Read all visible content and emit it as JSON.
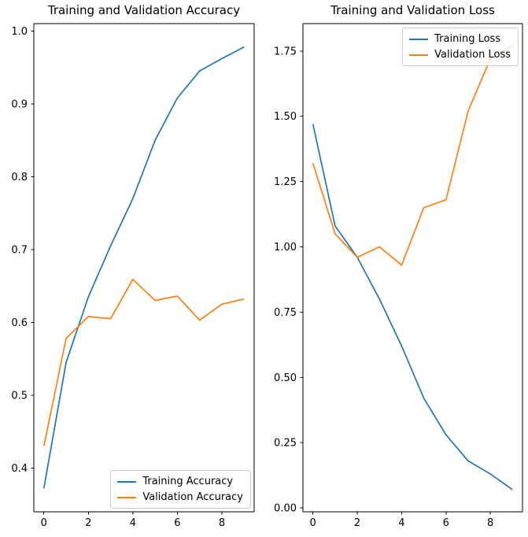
{
  "figure": {
    "background": "#ffffff",
    "axis_color": "#000000"
  },
  "chart_data": [
    {
      "type": "line",
      "title": "Training and Validation Accuracy",
      "xlabel": "",
      "ylabel": "",
      "x": [
        0,
        1,
        2,
        3,
        4,
        5,
        6,
        7,
        8,
        9
      ],
      "xlim": [
        -0.45,
        9.45
      ],
      "ylim": [
        0.34,
        1.01
      ],
      "xticks": [
        0,
        2,
        4,
        6,
        8
      ],
      "yticks": [
        0.4,
        0.5,
        0.6,
        0.7,
        0.8,
        0.9,
        1.0
      ],
      "ytick_decimals": 1,
      "grid": false,
      "legend_position": "lower right",
      "series": [
        {
          "name": "Training Accuracy",
          "color": "#1f77b4",
          "values": [
            0.372,
            0.545,
            0.635,
            0.705,
            0.77,
            0.85,
            0.908,
            0.945,
            0.962,
            0.978
          ]
        },
        {
          "name": "Validation Accuracy",
          "color": "#ff7f0e",
          "values": [
            0.43,
            0.578,
            0.608,
            0.605,
            0.659,
            0.63,
            0.636,
            0.603,
            0.625,
            0.632
          ]
        }
      ]
    },
    {
      "type": "line",
      "title": "Training and Validation Loss",
      "xlabel": "",
      "ylabel": "",
      "x": [
        0,
        1,
        2,
        3,
        4,
        5,
        6,
        7,
        8,
        9
      ],
      "xlim": [
        -0.45,
        9.45
      ],
      "ylim": [
        -0.015,
        1.855
      ],
      "xticks": [
        0,
        2,
        4,
        6,
        8
      ],
      "yticks": [
        0.0,
        0.25,
        0.5,
        0.75,
        1.0,
        1.25,
        1.5,
        1.75
      ],
      "ytick_decimals": 2,
      "grid": false,
      "legend_position": "upper right",
      "series": [
        {
          "name": "Training Loss",
          "color": "#1f77b4",
          "values": [
            1.47,
            1.08,
            0.96,
            0.8,
            0.62,
            0.42,
            0.28,
            0.18,
            0.13,
            0.07
          ]
        },
        {
          "name": "Validation Loss",
          "color": "#ff7f0e",
          "values": [
            1.32,
            1.05,
            0.96,
            1.0,
            0.93,
            1.15,
            1.18,
            1.52,
            1.72,
            1.77
          ]
        }
      ]
    }
  ]
}
